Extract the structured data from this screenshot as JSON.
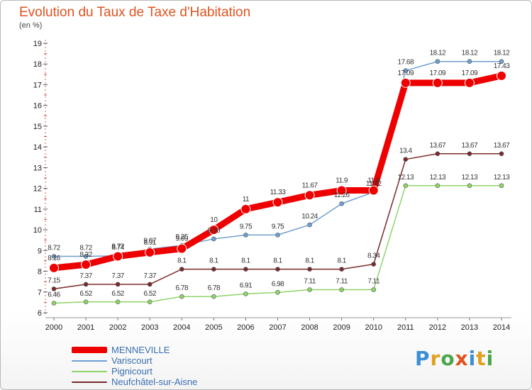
{
  "header": {
    "title": "Evolution du Taux de Taxe d'Habitation",
    "unit": "(en %)"
  },
  "logo": {
    "text": "Proxiti",
    "colors": [
      "#3a8fd6",
      "#e0a020",
      "#4aa64a",
      "#e0521f",
      "#3a8fd6",
      "#e0a020",
      "#4aa64a"
    ]
  },
  "chart_data": {
    "type": "line",
    "title": "Evolution du Taux de Taxe d'Habitation",
    "ylabel": "(en %)",
    "xlabel": "",
    "x": [
      "2000",
      "2001",
      "2002",
      "2003",
      "2004",
      "2005",
      "2006",
      "2007",
      "2008",
      "2009",
      "2010",
      "2011",
      "2012",
      "2013",
      "2014"
    ],
    "ylim": [
      6,
      19
    ],
    "yticks": [
      6,
      7,
      8,
      9,
      10,
      11,
      12,
      13,
      14,
      15,
      16,
      17,
      18,
      19
    ],
    "grid": false,
    "legend_position": "bottom-left",
    "series": [
      {
        "name": "MENNEVILLE",
        "color": "#ee0000",
        "labels": [
          "8.16",
          "8.32",
          "8.72",
          "8.91",
          "9.09",
          "10",
          "11",
          "11.33",
          "11.67",
          "11.9",
          "11.9",
          "17.09",
          "17.09",
          "17.09",
          "17.43"
        ],
        "values": [
          8.16,
          8.32,
          8.72,
          8.91,
          9.09,
          10,
          11,
          11.33,
          11.67,
          11.9,
          11.9,
          17.09,
          17.09,
          17.09,
          17.43
        ]
      },
      {
        "name": "Variscourt",
        "color": "#6f9fd0",
        "labels": [
          "8.72",
          "8.72",
          "8.74",
          "9.07",
          "9.25",
          "9.56",
          "9.75",
          "9.75",
          "10.24",
          "11.26",
          "11.82",
          "17.68",
          "18.12",
          "18.12",
          "18.12"
        ],
        "values": [
          8.72,
          8.72,
          8.74,
          9.07,
          9.25,
          9.56,
          9.75,
          9.75,
          10.24,
          11.26,
          11.82,
          17.68,
          18.12,
          18.12,
          18.12
        ]
      },
      {
        "name": "Pignicourt",
        "color": "#8fd46a",
        "labels": [
          "6.46",
          "6.52",
          "6.52",
          "6.52",
          "6.78",
          "6.78",
          "6.91",
          "6.98",
          "7.11",
          "7.11",
          "7.11",
          "12.13",
          "12.13",
          "12.13",
          "12.13"
        ],
        "values": [
          6.46,
          6.52,
          6.52,
          6.52,
          6.78,
          6.78,
          6.91,
          6.98,
          7.11,
          7.11,
          7.11,
          12.13,
          12.13,
          12.13,
          12.13
        ]
      },
      {
        "name": "Neufchâtel-sur-Aisne",
        "color": "#7a2a2a",
        "labels": [
          "7.15",
          "7.37",
          "7.37",
          "7.37",
          "8.1",
          "8.1",
          "8.1",
          "8.1",
          "8.1",
          "8.1",
          "8.34",
          "13.4",
          "13.67",
          "13.67",
          "13.67"
        ],
        "values": [
          7.15,
          7.37,
          7.37,
          7.37,
          8.1,
          8.1,
          8.1,
          8.1,
          8.1,
          8.1,
          8.34,
          13.4,
          13.67,
          13.67,
          13.67
        ]
      }
    ]
  }
}
